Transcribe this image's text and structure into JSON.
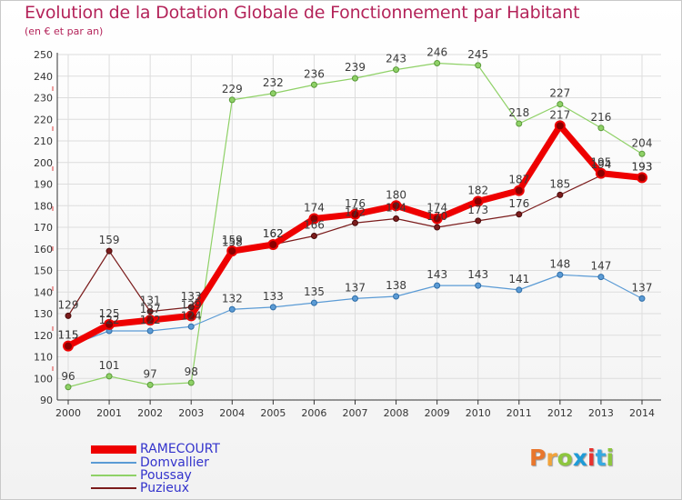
{
  "title": "Evolution de la Dotation Globale de Fonctionnement par Habitant",
  "subtitle": "(en € et par an)",
  "logo": {
    "letters": [
      "P",
      "r",
      "o",
      "x",
      "i",
      "t",
      "i"
    ],
    "colors": [
      "#e8762c",
      "#f2a33a",
      "#8dc63f",
      "#1f9bd7",
      "#e8322f",
      "#36a9e1",
      "#8dc63f"
    ]
  },
  "chart_data": {
    "type": "line",
    "title": "Evolution de la Dotation Globale de Fonctionnement par Habitant",
    "subtitle": "(en € et par an)",
    "xlabel": "",
    "ylabel": "",
    "ylim": [
      90,
      250
    ],
    "yticks": [
      90,
      100,
      110,
      120,
      130,
      140,
      150,
      160,
      170,
      180,
      190,
      200,
      210,
      220,
      230,
      240,
      250
    ],
    "grid": true,
    "legend_position": "bottom-left",
    "x": [
      "2000",
      "2001",
      "2002",
      "2003",
      "2004",
      "2005",
      "2006",
      "2007",
      "2008",
      "2009",
      "2010",
      "2011",
      "2012",
      "2013",
      "2014"
    ],
    "series": [
      {
        "name": "Poussay",
        "color": "#8fd167",
        "values": [
          96,
          101,
          97,
          98,
          229,
          232,
          236,
          239,
          243,
          246,
          245,
          218,
          227,
          216,
          204
        ]
      },
      {
        "name": "Domvallier",
        "color": "#5b9bd5",
        "values": [
          115,
          122,
          122,
          124,
          132,
          133,
          135,
          137,
          138,
          143,
          143,
          141,
          148,
          147,
          137
        ]
      },
      {
        "name": "Puzieux",
        "color": "#7b1c1c",
        "values": [
          129,
          159,
          131,
          133,
          158,
          162,
          166,
          172,
          174,
          170,
          173,
          176,
          185,
          194,
          193
        ]
      },
      {
        "name": "RAMECOURT",
        "color": "#ee0000",
        "values": [
          115,
          125,
          127,
          129,
          159,
          162,
          174,
          176,
          180,
          174,
          182,
          187,
          217,
          195,
          193
        ]
      }
    ],
    "legend": [
      "RAMECOURT",
      "Domvallier",
      "Poussay",
      "Puzieux"
    ]
  }
}
